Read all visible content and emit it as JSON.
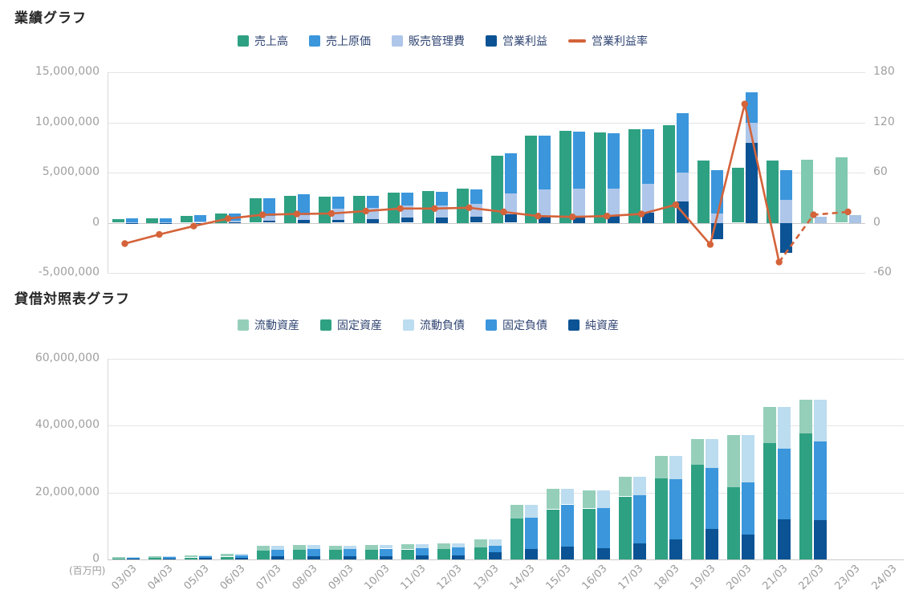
{
  "chart_data": [
    {
      "type": "bar",
      "subtype": "grouped-bar-with-line",
      "title": "業績グラフ",
      "categories": [
        "03/03",
        "04/03",
        "05/03",
        "06/03",
        "07/03",
        "08/03",
        "09/03",
        "10/03",
        "11/03",
        "12/03",
        "13/03",
        "14/03",
        "15/03",
        "16/03",
        "17/03",
        "18/03",
        "19/03",
        "20/03",
        "21/03",
        "22/03",
        "23/03",
        "24/03"
      ],
      "y_left": {
        "min": -5000000,
        "max": 15000000,
        "ticks": [
          15000000,
          10000000,
          5000000,
          0,
          -5000000
        ]
      },
      "y_right": {
        "min": -60,
        "max": 180,
        "ticks": [
          180,
          120,
          60,
          0,
          -60
        ]
      },
      "forecast_from_index": 20,
      "series": [
        {
          "key": "sales",
          "label": "売上高",
          "color": "#2fa183",
          "forecast_color": "#7fc9b1",
          "role": "bar-single",
          "values": [
            350000,
            420000,
            650000,
            900000,
            2450000,
            2700000,
            2600000,
            2700000,
            3000000,
            3200000,
            3400000,
            6700000,
            8700000,
            9200000,
            9000000,
            9300000,
            9700000,
            6200000,
            5450000,
            6200000,
            6300000,
            6550000
          ]
        },
        {
          "key": "cost",
          "label": "売上原価",
          "color": "#3b96dc",
          "role": "stack",
          "stack_order": 2,
          "values": [
            390000,
            410000,
            700000,
            710000,
            1780000,
            2100000,
            1200000,
            1200000,
            1300000,
            1350000,
            1450000,
            4000000,
            5400000,
            5660000,
            5500000,
            5420000,
            5900000,
            4340000,
            3000000,
            2950000,
            null,
            null
          ]
        },
        {
          "key": "sga",
          "label": "販売管理費",
          "color": "#aec6ea",
          "role": "stack",
          "stack_order": 1,
          "values": [
            55000,
            70000,
            85000,
            145000,
            440000,
            460000,
            1110000,
            1120000,
            1190000,
            1210000,
            1240000,
            2030000,
            2600000,
            2800000,
            2680000,
            2900000,
            2900000,
            900000,
            2000000,
            2300000,
            null,
            null
          ]
        },
        {
          "key": "op",
          "label": "営業利益",
          "color": "#0b5394",
          "forecast_color": "#a9c4e4",
          "role": "stack",
          "stack_order": 0,
          "values": [
            -95000,
            -60000,
            -25000,
            45000,
            230000,
            280000,
            290000,
            380000,
            510000,
            540000,
            610000,
            870000,
            700000,
            640000,
            720000,
            980000,
            2100000,
            -1620000,
            8000000,
            -3000000,
            620000,
            760000
          ]
        },
        {
          "key": "margin",
          "label": "営業利益率",
          "color": "#d4633a",
          "role": "line",
          "axis": "right",
          "dashed_from_index": 19,
          "values": [
            -25,
            -14,
            -4,
            5,
            9.5,
            10.5,
            11,
            14,
            17,
            17,
            18,
            13,
            8,
            7,
            8,
            10.5,
            21.5,
            -26,
            142,
            -47,
            9.5,
            13
          ]
        }
      ]
    },
    {
      "type": "bar",
      "subtype": "stacked-bar-pairs",
      "title": "貸借対照表グラフ",
      "unit_label": "(百万円)",
      "categories": [
        "03/03",
        "04/03",
        "05/03",
        "06/03",
        "07/03",
        "08/03",
        "09/03",
        "10/03",
        "11/03",
        "12/03",
        "13/03",
        "14/03",
        "15/03",
        "16/03",
        "17/03",
        "18/03",
        "19/03",
        "20/03",
        "21/03",
        "22/03",
        "23/03",
        "24/03"
      ],
      "y": {
        "min": 0,
        "max": 60000000,
        "ticks": [
          60000000,
          40000000,
          20000000,
          0
        ]
      },
      "series": [
        {
          "key": "current_assets",
          "label": "流動資産",
          "color": "#95cfba",
          "bar": 0,
          "stack_order": 1,
          "values": [
            450000,
            550000,
            700000,
            850000,
            1400000,
            1500000,
            1400000,
            1500000,
            1600000,
            1600000,
            2600000,
            4250000,
            6200000,
            5450000,
            5850000,
            6800000,
            7600000,
            15700000,
            10800000,
            10200000,
            null,
            null
          ]
        },
        {
          "key": "fixed_assets",
          "label": "固定資産",
          "color": "#2fa183",
          "bar": 0,
          "stack_order": 0,
          "values": [
            350000,
            450000,
            600000,
            850000,
            2600000,
            2900000,
            2800000,
            2900000,
            3000000,
            3100000,
            3500000,
            12200000,
            15000000,
            15250000,
            18850000,
            24200000,
            28400000,
            21500000,
            34800000,
            37600000,
            null,
            null
          ]
        },
        {
          "key": "current_liab",
          "label": "流動負債",
          "color": "#bcdcf0",
          "bar": 1,
          "stack_order": 2,
          "values": [
            250000,
            300000,
            400000,
            500000,
            1100000,
            1200000,
            1100000,
            1150000,
            1200000,
            1200000,
            2000000,
            3850000,
            4750000,
            5300000,
            5500000,
            7100000,
            8600000,
            14200000,
            12400000,
            12600000,
            null,
            null
          ]
        },
        {
          "key": "fixed_liab",
          "label": "固定負債",
          "color": "#3b96dc",
          "bar": 1,
          "stack_order": 1,
          "values": [
            300000,
            400000,
            500000,
            650000,
            2000000,
            2200000,
            2100000,
            2200000,
            2300000,
            2350000,
            2000000,
            9550000,
            12600000,
            11950000,
            14350000,
            17850000,
            18350000,
            15550000,
            21150000,
            23500000,
            null,
            null
          ]
        },
        {
          "key": "net_assets",
          "label": "純資産",
          "color": "#0b5394",
          "bar": 1,
          "stack_order": 0,
          "values": [
            250000,
            300000,
            400000,
            550000,
            900000,
            1000000,
            1000000,
            1050000,
            1100000,
            1150000,
            2100000,
            3050000,
            3850000,
            3450000,
            4850000,
            6050000,
            9050000,
            7450000,
            12050000,
            11700000,
            null,
            null
          ]
        }
      ]
    }
  ]
}
